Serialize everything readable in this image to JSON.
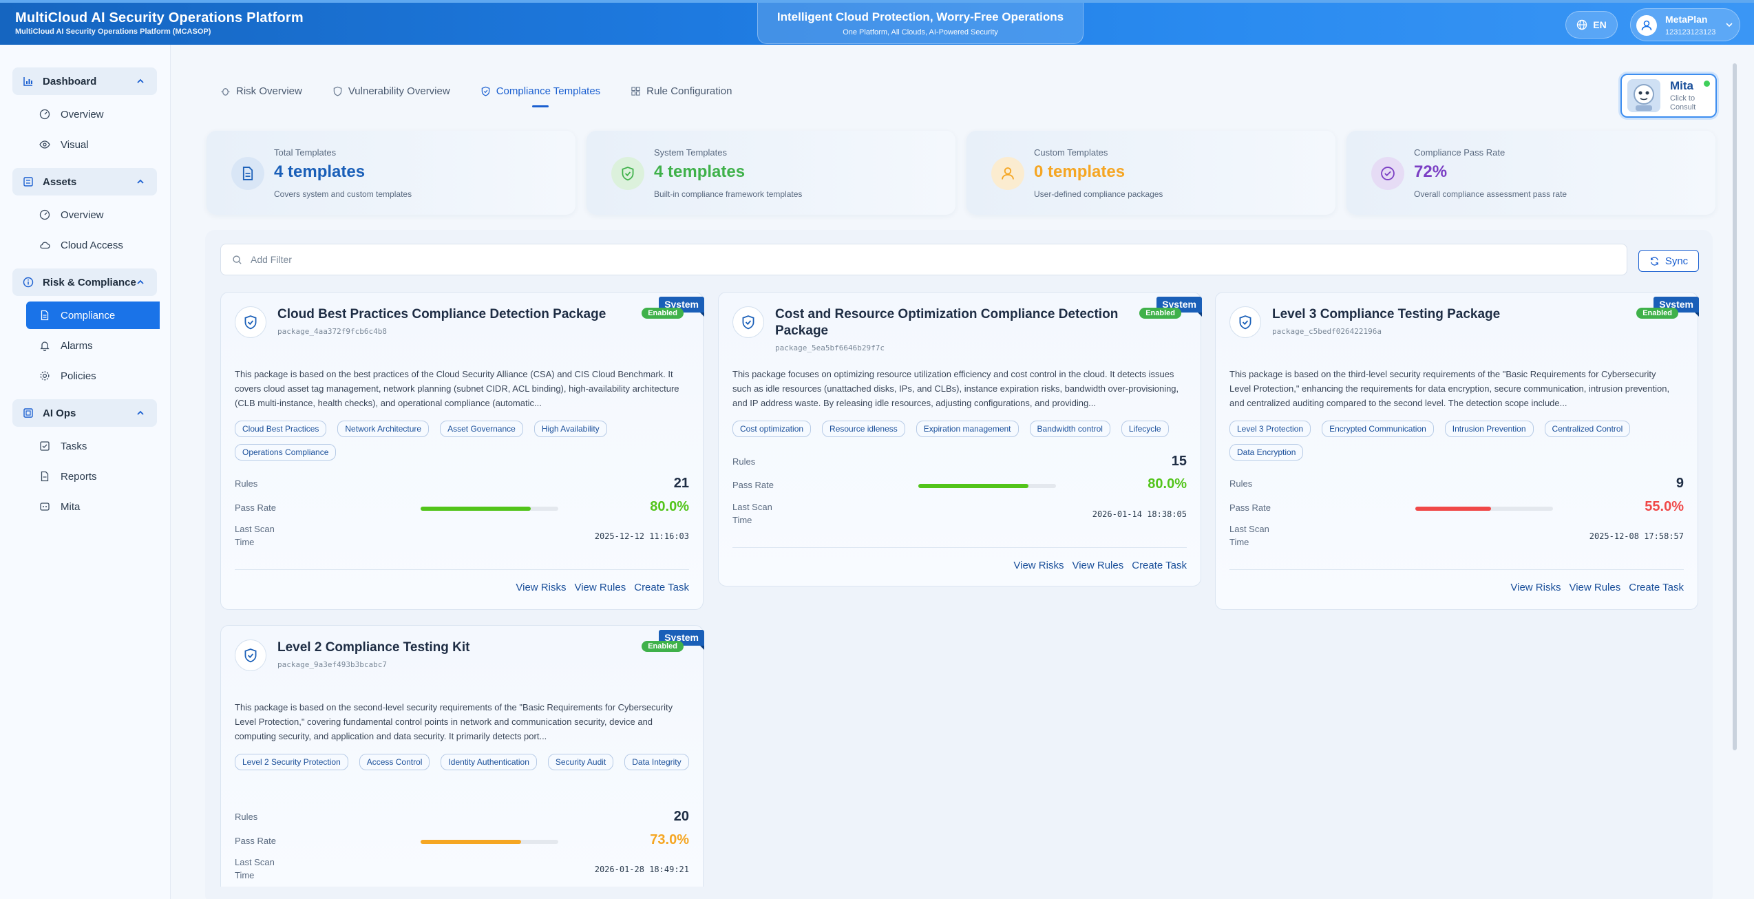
{
  "header": {
    "title": "MultiCloud AI Security Operations Platform",
    "subtitle": "MultiCloud AI Security Operations Platform (MCASOP)",
    "slogan_main": "Intelligent Cloud Protection, Worry-Free Operations",
    "slogan_sub": "One Platform, All Clouds, AI-Powered Security",
    "lang": "EN",
    "user_name": "MetaPlan",
    "user_id": "123123123123"
  },
  "sidebar": {
    "groups": [
      {
        "label": "Dashboard",
        "items": [
          "Overview",
          "Visual"
        ]
      },
      {
        "label": "Assets",
        "items": [
          "Overview",
          "Cloud Access"
        ]
      },
      {
        "label": "Risk & Compliance",
        "items": [
          "Compliance",
          "Alarms",
          "Policies"
        ]
      },
      {
        "label": "AI Ops",
        "items": [
          "Tasks",
          "Reports",
          "Mita"
        ]
      }
    ]
  },
  "tabs": [
    "Risk Overview",
    "Vulnerability Overview",
    "Compliance Templates",
    "Rule Configuration"
  ],
  "stats": [
    {
      "label": "Total Templates",
      "value": "4 templates",
      "sub": "Covers system and custom templates",
      "color": "#1a5fb8"
    },
    {
      "label": "System Templates",
      "value": "4 templates",
      "sub": "Built-in compliance framework templates",
      "color": "#3fb14a"
    },
    {
      "label": "Custom Templates",
      "value": "0 templates",
      "sub": "User-defined compliance packages",
      "color": "#f5a623"
    },
    {
      "label": "Compliance Pass Rate",
      "value": "72%",
      "sub": "Overall compliance assessment pass rate",
      "color": "#7b3fc4"
    }
  ],
  "filter": {
    "placeholder": "Add Filter",
    "sync": "Sync"
  },
  "card_labels": {
    "system": "System",
    "enabled": "Enabled",
    "rules": "Rules",
    "pass_rate": "Pass Rate",
    "last_scan": "Last Scan Time",
    "view_risks": "View Risks",
    "view_rules": "View Rules",
    "create_task": "Create Task"
  },
  "cards": [
    {
      "title": "Cloud Best Practices Compliance Detection Package",
      "pkg": "package_4aa372f9fcb6c4b8",
      "desc": "This package is based on the best practices of the Cloud Security Alliance (CSA) and CIS Cloud Benchmark. It covers cloud asset tag management, network planning (subnet CIDR, ACL binding), high-availability architecture (CLB multi-instance, health checks), and operational compliance (automatic...",
      "tags": [
        "Cloud Best Practices",
        "Network Architecture",
        "Asset Governance",
        "High Availability",
        "Operations Compliance"
      ],
      "rules": "21",
      "pass_rate": "80.0%",
      "pass_value": 80,
      "pass_color": "#52c41a",
      "last_scan": "2025-12-12 11:16:03"
    },
    {
      "title": "Cost and Resource Optimization Compliance Detection Package",
      "pkg": "package_5ea5bf6646b29f7c",
      "desc": "This package focuses on optimizing resource utilization efficiency and cost control in the cloud. It detects issues such as idle resources (unattached disks, IPs, and CLBs), instance expiration risks, bandwidth over-provisioning, and IP address waste. By releasing idle resources, adjusting configurations, and providing...",
      "tags": [
        "Cost optimization",
        "Resource idleness",
        "Expiration management",
        "Bandwidth control",
        "Lifecycle"
      ],
      "rules": "15",
      "pass_rate": "80.0%",
      "pass_value": 80,
      "pass_color": "#52c41a",
      "last_scan": "2026-01-14 18:38:05"
    },
    {
      "title": "Level 3 Compliance Testing Package",
      "pkg": "package_c5bedf026422196a",
      "desc": "This package is based on the third-level security requirements of the \"Basic Requirements for Cybersecurity Level Protection,\" enhancing the requirements for data encryption, secure communication, intrusion prevention, and centralized auditing compared to the second level. The detection scope include...",
      "tags": [
        "Level 3 Protection",
        "Encrypted Communication",
        "Intrusion Prevention",
        "Centralized Control",
        "Data Encryption"
      ],
      "rules": "9",
      "pass_rate": "55.0%",
      "pass_value": 55,
      "pass_color": "#f04848",
      "last_scan": "2025-12-08 17:58:57"
    },
    {
      "title": "Level 2 Compliance Testing Kit",
      "pkg": "package_9a3ef493b3bcabc7",
      "desc": "This package is based on the second-level security requirements of the \"Basic Requirements for Cybersecurity Level Protection,\" covering fundamental control points in network and communication security, device and computing security, and application and data security. It primarily detects port...",
      "tags": [
        "Level 2 Security Protection",
        "Access Control",
        "Identity Authentication",
        "Security Audit",
        "Data Integrity"
      ],
      "rules": "20",
      "pass_rate": "73.0%",
      "pass_value": 73,
      "pass_color": "#f5a623",
      "last_scan": "2026-01-28 18:49:21"
    }
  ],
  "mita": {
    "name": "Mita",
    "hint": "Click to Consult"
  }
}
